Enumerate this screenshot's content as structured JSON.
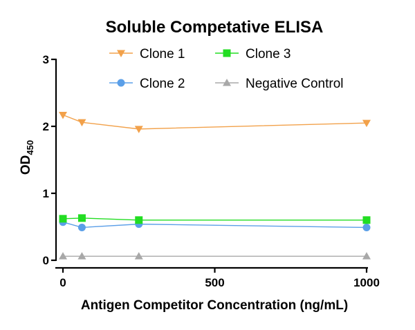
{
  "chart_data": {
    "type": "line",
    "title": "Soluble Competative ELISA",
    "xlabel": "Antigen Competitor Concentration (ng/mL)",
    "ylabel": "OD",
    "ylabel_subscript": "450",
    "xlim": [
      0,
      1000
    ],
    "ylim": [
      0,
      3
    ],
    "x_ticks": [
      0,
      500,
      1000
    ],
    "y_ticks": [
      0,
      1,
      2,
      3
    ],
    "x_tick_labels": [
      "0",
      "500",
      "1000"
    ],
    "y_tick_labels": [
      "0",
      "1",
      "2",
      "3"
    ],
    "grid": false,
    "legend_position": "top",
    "series": [
      {
        "name": "Clone 1",
        "marker": "triangle-down",
        "color": "#F2A14A",
        "x": [
          0,
          62.5,
          250,
          1000
        ],
        "y": [
          2.17,
          2.06,
          1.96,
          2.05
        ]
      },
      {
        "name": "Clone 2",
        "marker": "circle",
        "color": "#5B9FE8",
        "x": [
          0,
          62.5,
          250,
          1000
        ],
        "y": [
          0.57,
          0.49,
          0.54,
          0.49
        ]
      },
      {
        "name": "Clone 3",
        "marker": "square",
        "color": "#22DD22",
        "x": [
          0,
          62.5,
          250,
          1000
        ],
        "y": [
          0.62,
          0.63,
          0.6,
          0.6
        ]
      },
      {
        "name": "Negative Control",
        "marker": "triangle-up",
        "color": "#A8A8A8",
        "x": [
          0,
          62.5,
          250,
          1000
        ],
        "y": [
          0.06,
          0.06,
          0.06,
          0.06
        ]
      }
    ],
    "legend_order": [
      "Clone 1",
      "Clone 3",
      "Clone 2",
      "Negative Control"
    ]
  }
}
